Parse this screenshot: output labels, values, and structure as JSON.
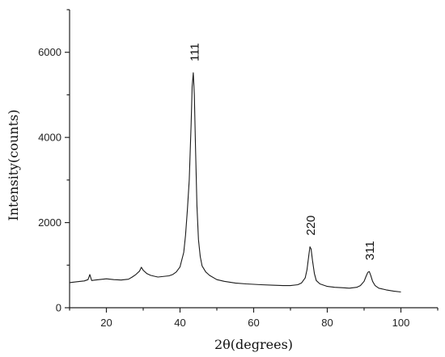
{
  "chart_data": {
    "type": "line",
    "xlabel": "2θ(degrees)",
    "ylabel": "Intensity(counts)",
    "xlim": [
      10,
      110
    ],
    "ylim": [
      0,
      7000
    ],
    "x_ticks": [
      20,
      40,
      60,
      80,
      100
    ],
    "y_ticks": [
      0,
      2000,
      4000,
      6000
    ],
    "grid": false,
    "legend": "none",
    "line_color": "#1a1a1a",
    "series": [
      {
        "x": [
          10,
          12,
          14,
          15,
          15.5,
          16,
          17,
          18,
          20,
          22,
          24,
          26,
          27,
          28,
          29,
          29.5,
          30,
          31,
          32,
          33,
          34,
          35,
          36,
          37,
          38,
          39,
          40,
          41,
          41.5,
          42,
          42.5,
          43,
          43.3,
          43.6,
          43.9,
          44.2,
          44.6,
          45,
          45.5,
          46,
          47,
          48,
          50,
          52,
          55,
          58,
          60,
          62,
          65,
          68,
          70,
          72,
          73,
          74,
          74.5,
          75,
          75.3,
          75.6,
          76,
          76.5,
          77,
          78,
          80,
          82,
          84,
          86,
          88,
          89,
          90,
          90.5,
          91,
          91.4,
          91.8,
          92.3,
          93,
          94,
          96,
          98,
          100
        ],
        "y": [
          590,
          610,
          630,
          660,
          780,
          640,
          650,
          660,
          680,
          660,
          650,
          670,
          720,
          780,
          860,
          950,
          880,
          800,
          760,
          740,
          720,
          730,
          740,
          750,
          780,
          840,
          960,
          1300,
          1700,
          2300,
          3000,
          4300,
          5200,
          5520,
          5000,
          3800,
          2400,
          1600,
          1200,
          980,
          840,
          760,
          660,
          620,
          580,
          560,
          550,
          540,
          530,
          520,
          520,
          540,
          580,
          700,
          900,
          1250,
          1430,
          1380,
          1100,
          800,
          640,
          560,
          500,
          480,
          470,
          460,
          480,
          520,
          620,
          730,
          830,
          850,
          760,
          620,
          520,
          460,
          420,
          390,
          370
        ]
      }
    ],
    "annotations": [
      {
        "text": "111",
        "x": 44
      },
      {
        "text": "220",
        "x": 75.5
      },
      {
        "text": "311",
        "x": 91.5
      }
    ]
  }
}
